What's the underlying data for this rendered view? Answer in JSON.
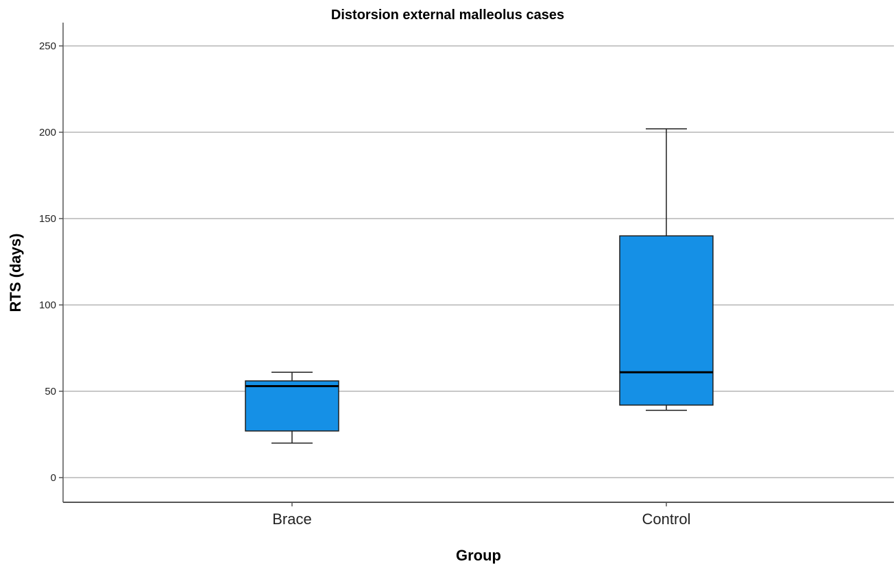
{
  "chart_data": {
    "type": "box",
    "title": "Distorsion external malleolus cases",
    "xlabel": "Group",
    "ylabel": "RTS (days)",
    "ylim": [
      -13,
      265
    ],
    "yticks": [
      0,
      50,
      100,
      150,
      200,
      250
    ],
    "grid": true,
    "categories": [
      "Brace",
      "Control"
    ],
    "boxes": [
      {
        "category": "Brace",
        "min": 20,
        "q1": 27,
        "median": 53,
        "q3": 56,
        "max": 61
      },
      {
        "category": "Control",
        "min": 39,
        "q1": 42,
        "median": 61,
        "q3": 140,
        "max": 202
      }
    ],
    "colors": {
      "box_fill": "#1590e6",
      "box_stroke": "#1f1f1f",
      "grid": "#c8c8c8",
      "axis": "#555555"
    }
  }
}
